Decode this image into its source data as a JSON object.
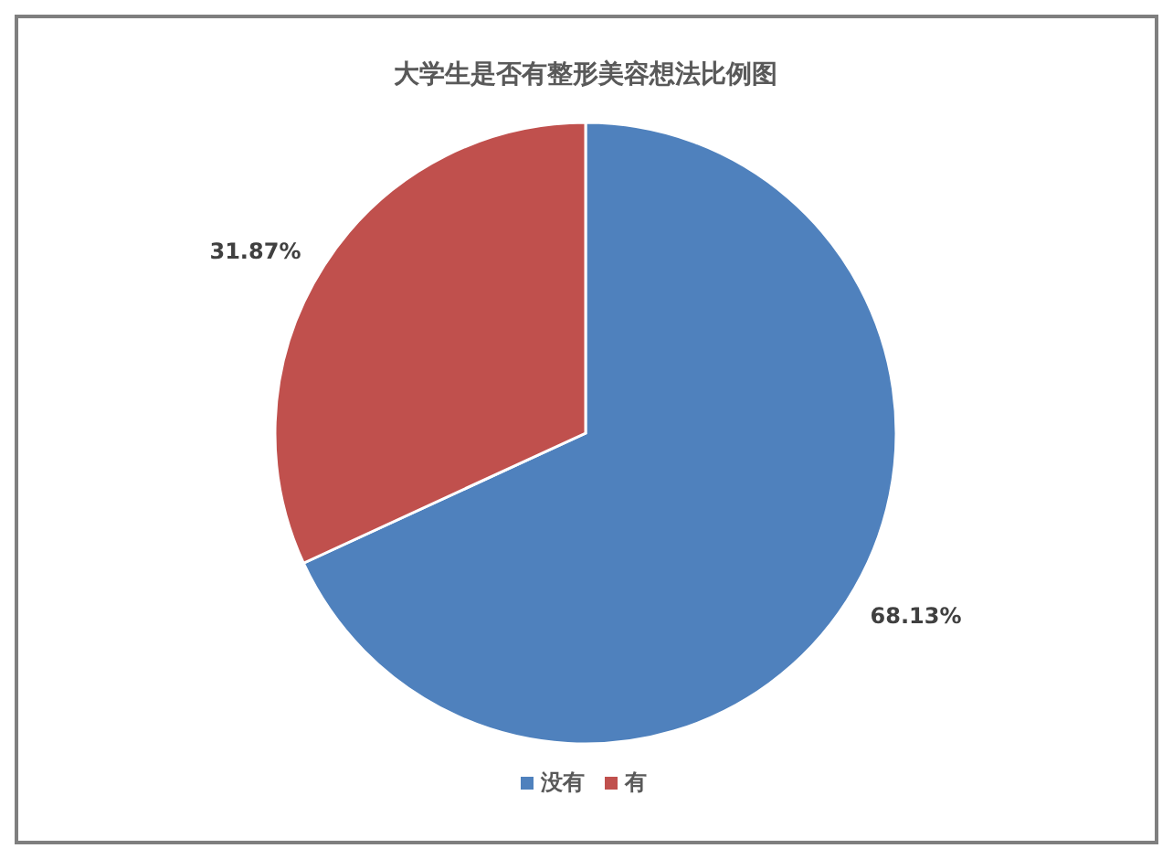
{
  "chart_data": {
    "type": "pie",
    "title": "大学生是否有整形美容想法比例图",
    "categories": [
      "没有",
      "有"
    ],
    "values": [
      68.13,
      31.87
    ],
    "colors": [
      "#4f81bd",
      "#c0504d"
    ],
    "value_labels": [
      "68.13%",
      "31.87%"
    ],
    "legend": "bottom"
  }
}
